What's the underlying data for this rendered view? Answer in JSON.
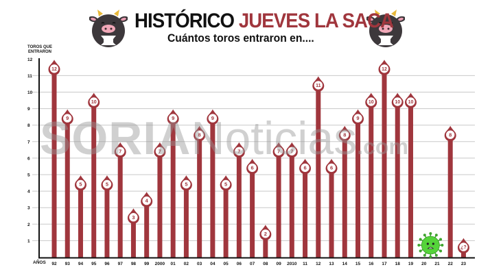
{
  "header": {
    "title_part1": "HISTÓRICO ",
    "title_part2": "JUEVES LA SACA",
    "subtitle": "Cuántos toros entraron en....",
    "left_icon": "cow-mascot-icon",
    "right_icon": "cow-mascot-icon"
  },
  "axes": {
    "y_label_line1": "TOROS QUE",
    "y_label_line2": "ENTRARON",
    "x_label": "AÑOS"
  },
  "watermark": {
    "bold": "SORIA",
    "light": "Noticias",
    "suffix": ".com"
  },
  "colors": {
    "bar": "#a0363d",
    "grid": "#c8c8c8",
    "axis": "#111111",
    "virus": "#55d43a",
    "text": "#111111"
  },
  "annotations": {
    "2020": "virus-icon (no celebration)",
    "2021": "virus-icon (no celebration)",
    "2023_label": "¿?"
  },
  "chart_data": {
    "type": "bar",
    "title": "HISTÓRICO JUEVES LA SACA",
    "subtitle": "Cuántos toros entraron en....",
    "xlabel": "AÑOS",
    "ylabel": "TOROS QUE ENTRARON",
    "ylim": [
      0,
      12
    ],
    "yticks": [
      1,
      2,
      3,
      4,
      5,
      6,
      7,
      8,
      9,
      10,
      11,
      12
    ],
    "grid": true,
    "legend": null,
    "categories": [
      "92",
      "93",
      "94",
      "95",
      "96",
      "97",
      "98",
      "99",
      "2000",
      "01",
      "02",
      "03",
      "04",
      "05",
      "06",
      "07",
      "08",
      "09",
      "2010",
      "11",
      "12",
      "13",
      "14",
      "15",
      "16",
      "17",
      "18",
      "19",
      "20",
      "21",
      "22",
      "23"
    ],
    "values": [
      12,
      9,
      5,
      10,
      5,
      7,
      3,
      4,
      7,
      9,
      5,
      8,
      9,
      5,
      7,
      6,
      2,
      7,
      7,
      6,
      11,
      6,
      8,
      9,
      10,
      12,
      10,
      10,
      null,
      null,
      8,
      null
    ],
    "labels": [
      "12",
      "9",
      "5",
      "10",
      "5",
      "7",
      "3",
      "4",
      "7",
      "9",
      "5",
      "8",
      "9",
      "5",
      "7",
      "6",
      "2",
      "7",
      "7",
      "6",
      "11",
      "6",
      "8",
      "9",
      "10",
      "12",
      "10",
      "10",
      "",
      "",
      "8",
      "¿?"
    ]
  }
}
